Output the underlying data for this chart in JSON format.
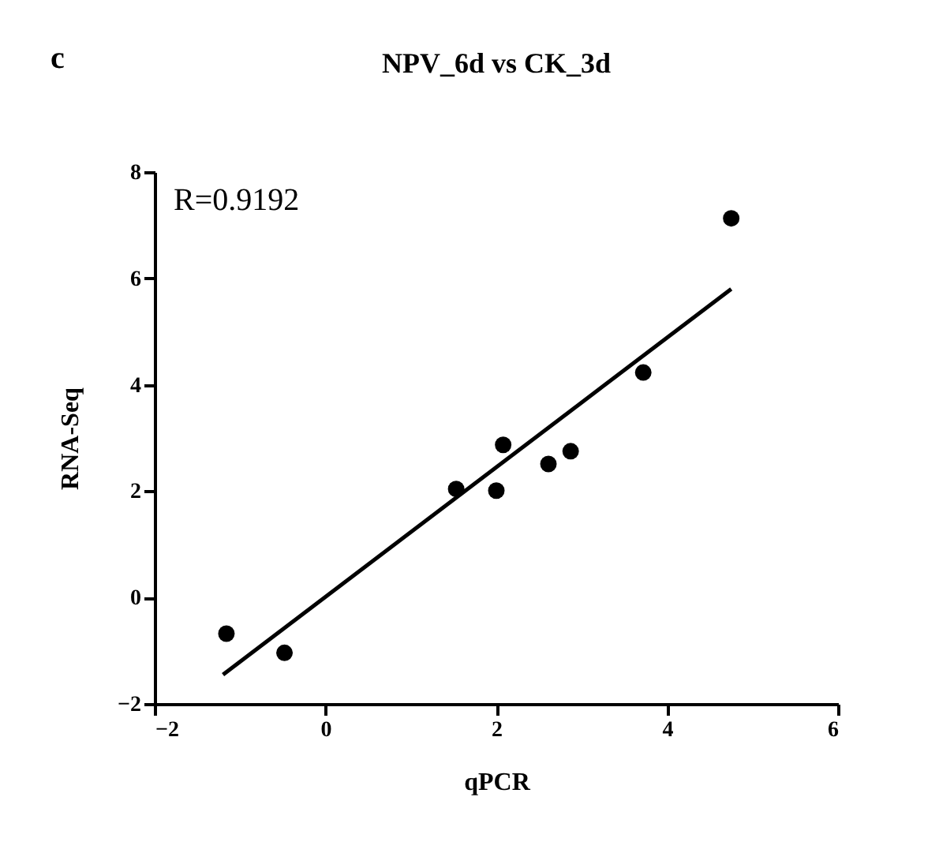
{
  "chart_data": {
    "type": "scatter",
    "title": "NPV_6d vs CK_3d",
    "xlabel": "qPCR",
    "ylabel": "RNA-Seq",
    "annotations": [
      "c",
      "R=0.9192"
    ],
    "series": [
      {
        "color": "#000000",
        "marker": "circle",
        "x": [
          -1.16,
          -0.48,
          1.53,
          2.0,
          2.08,
          2.61,
          2.87,
          3.72,
          4.75
        ],
        "values": [
          -0.68,
          -1.04,
          2.04,
          2.01,
          2.87,
          2.51,
          2.75,
          4.23,
          7.13
        ]
      },
      {
        "type": "line",
        "color": "#000000",
        "x": [
          -1.2,
          4.75
        ],
        "values": [
          -1.45,
          5.8
        ]
      }
    ],
    "xlim": [
      -2,
      6
    ],
    "xticks": [
      -2,
      0,
      2,
      4,
      6
    ],
    "ylim": [
      -2,
      8
    ],
    "yticks": [
      -2,
      0,
      2,
      4,
      6,
      8
    ],
    "grid": false
  }
}
